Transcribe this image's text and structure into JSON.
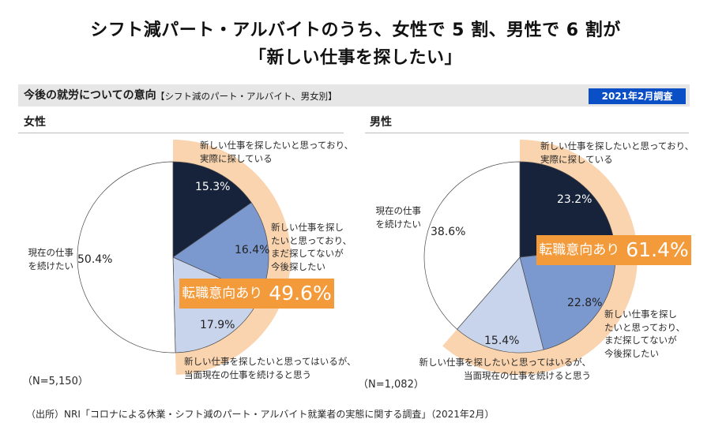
{
  "title": {
    "line1": "シフト減パート・アルバイトのうち、女性で 5 割、男性で 6 割が",
    "line2": "「新しい仕事を探したい」"
  },
  "section": {
    "heading": "今後の就労についての意向",
    "subheading": "【シフト減のパート・アルバイト、男女別】",
    "badge": "2021年2月調査"
  },
  "colors": {
    "badge": "#0b4fc6",
    "highlight_box": "#f39a3b",
    "highlight_band": "#fad4ae",
    "section_bar": "#e6e6e6"
  },
  "chart_data": [
    {
      "type": "pie",
      "title": "女性",
      "sample_size": "（N=5,150）",
      "start_angle": "12 o'clock, clockwise",
      "categories": [
        "新しい仕事を探したいと思っており、実際に探している",
        "新しい仕事を探したいと思っており、まだ探してないが今後探したい",
        "新しい仕事を探したいと思ってはいるが、当面現在の仕事を続けると思う",
        "現在の仕事を続けたい"
      ],
      "values": [
        15.3,
        16.4,
        17.9,
        50.4
      ],
      "value_labels": [
        "15.3%",
        "16.4%",
        "17.9%",
        "50.4%"
      ],
      "colors": [
        "#17223b",
        "#7b98cf",
        "#c8d4ec",
        "#ffffff"
      ],
      "label_lines": [
        [
          "新しい仕事を探したいと思っており、",
          "実際に探している"
        ],
        [
          "新しい仕事を探し",
          "たいと思っており、",
          "まだ探してないが",
          "今後探したい"
        ],
        [
          "新しい仕事を探したいと思ってはいるが、",
          "当面現在の仕事を続けると思う"
        ],
        [
          "現在の仕事",
          "を続けたい"
        ]
      ],
      "highlight": {
        "label": "転職意向あり",
        "value": 49.6,
        "value_label": "49.6%",
        "covers_categories": [
          0,
          1,
          2
        ]
      }
    },
    {
      "type": "pie",
      "title": "男性",
      "sample_size": "（N=1,082）",
      "start_angle": "12 o'clock, clockwise",
      "categories": [
        "新しい仕事を探したいと思っており、実際に探している",
        "新しい仕事を探したいと思っており、まだ探してないが今後探したい",
        "新しい仕事を探したいと思ってはいるが、当面現在の仕事を続けると思う",
        "現在の仕事を続けたい"
      ],
      "values": [
        23.2,
        22.8,
        15.4,
        38.6
      ],
      "value_labels": [
        "23.2%",
        "22.8%",
        "15.4%",
        "38.6%"
      ],
      "colors": [
        "#17223b",
        "#7b98cf",
        "#c8d4ec",
        "#ffffff"
      ],
      "label_lines": [
        [
          "新しい仕事を探したいと思っており、",
          "実際に探している"
        ],
        [
          "新しい仕事を探し",
          "たいと思っており、",
          "まだ探してないが",
          "今後探したい"
        ],
        [
          "新しい仕事を探したいと思ってはいるが、",
          "当面現在の仕事を続けると思う"
        ],
        [
          "現在の仕事",
          "を続けたい"
        ]
      ],
      "highlight": {
        "label": "転職意向あり",
        "value": 61.4,
        "value_label": "61.4%",
        "covers_categories": [
          0,
          1,
          2
        ]
      }
    }
  ],
  "footer": {
    "source": "（出所）NRI「コロナによる休業・シフト減のパート・アルバイト就業者の実態に関する調査」（2021年2月）"
  }
}
